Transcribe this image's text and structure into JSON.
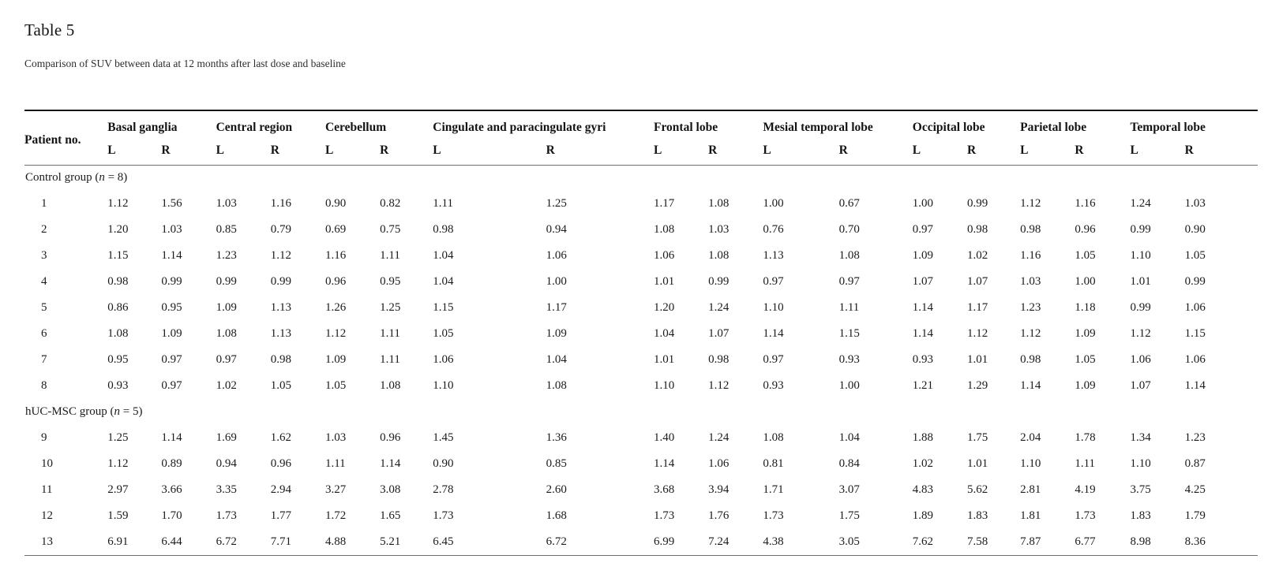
{
  "page": {
    "title": "Table 5",
    "subtitle": "Comparison of SUV between data at 12 months after last dose and baseline"
  },
  "table": {
    "patient_col_header": "Patient no.",
    "side_labels": [
      "L",
      "R"
    ],
    "regions": [
      {
        "label": "Basal ganglia"
      },
      {
        "label": "Central region"
      },
      {
        "label": "Cerebellum"
      },
      {
        "label": "Cingulate and paracingulate gyri"
      },
      {
        "label": "Frontal lobe"
      },
      {
        "label": "Mesial temporal lobe"
      },
      {
        "label": "Occipital lobe"
      },
      {
        "label": "Parietal lobe"
      },
      {
        "label": "Temporal lobe"
      }
    ],
    "groups": [
      {
        "label_pre": "Control group (",
        "label_var": "n",
        "label_post": " = 8)",
        "rows": [
          {
            "patient": "1",
            "values": [
              "1.12",
              "1.56",
              "1.03",
              "1.16",
              "0.90",
              "0.82",
              "1.11",
              "1.25",
              "1.17",
              "1.08",
              "1.00",
              "0.67",
              "1.00",
              "0.99",
              "1.12",
              "1.16",
              "1.24",
              "1.03"
            ]
          },
          {
            "patient": "2",
            "values": [
              "1.20",
              "1.03",
              "0.85",
              "0.79",
              "0.69",
              "0.75",
              "0.98",
              "0.94",
              "1.08",
              "1.03",
              "0.76",
              "0.70",
              "0.97",
              "0.98",
              "0.98",
              "0.96",
              "0.99",
              "0.90"
            ]
          },
          {
            "patient": "3",
            "values": [
              "1.15",
              "1.14",
              "1.23",
              "1.12",
              "1.16",
              "1.11",
              "1.04",
              "1.06",
              "1.06",
              "1.08",
              "1.13",
              "1.08",
              "1.09",
              "1.02",
              "1.16",
              "1.05",
              "1.10",
              "1.05"
            ]
          },
          {
            "patient": "4",
            "values": [
              "0.98",
              "0.99",
              "0.99",
              "0.99",
              "0.96",
              "0.95",
              "1.04",
              "1.00",
              "1.01",
              "0.99",
              "0.97",
              "0.97",
              "1.07",
              "1.07",
              "1.03",
              "1.00",
              "1.01",
              "0.99"
            ]
          },
          {
            "patient": "5",
            "values": [
              "0.86",
              "0.95",
              "1.09",
              "1.13",
              "1.26",
              "1.25",
              "1.15",
              "1.17",
              "1.20",
              "1.24",
              "1.10",
              "1.11",
              "1.14",
              "1.17",
              "1.23",
              "1.18",
              "0.99",
              "1.06"
            ]
          },
          {
            "patient": "6",
            "values": [
              "1.08",
              "1.09",
              "1.08",
              "1.13",
              "1.12",
              "1.11",
              "1.05",
              "1.09",
              "1.04",
              "1.07",
              "1.14",
              "1.15",
              "1.14",
              "1.12",
              "1.12",
              "1.09",
              "1.12",
              "1.15"
            ]
          },
          {
            "patient": "7",
            "values": [
              "0.95",
              "0.97",
              "0.97",
              "0.98",
              "1.09",
              "1.11",
              "1.06",
              "1.04",
              "1.01",
              "0.98",
              "0.97",
              "0.93",
              "0.93",
              "1.01",
              "0.98",
              "1.05",
              "1.06",
              "1.06"
            ]
          },
          {
            "patient": "8",
            "values": [
              "0.93",
              "0.97",
              "1.02",
              "1.05",
              "1.05",
              "1.08",
              "1.10",
              "1.08",
              "1.10",
              "1.12",
              "0.93",
              "1.00",
              "1.21",
              "1.29",
              "1.14",
              "1.09",
              "1.07",
              "1.14"
            ]
          }
        ]
      },
      {
        "label_pre": "hUC-MSC group (",
        "label_var": "n",
        "label_post": " = 5)",
        "rows": [
          {
            "patient": "9",
            "values": [
              "1.25",
              "1.14",
              "1.69",
              "1.62",
              "1.03",
              "0.96",
              "1.45",
              "1.36",
              "1.40",
              "1.24",
              "1.08",
              "1.04",
              "1.88",
              "1.75",
              "2.04",
              "1.78",
              "1.34",
              "1.23"
            ]
          },
          {
            "patient": "10",
            "values": [
              "1.12",
              "0.89",
              "0.94",
              "0.96",
              "1.11",
              "1.14",
              "0.90",
              "0.85",
              "1.14",
              "1.06",
              "0.81",
              "0.84",
              "1.02",
              "1.01",
              "1.10",
              "1.11",
              "1.10",
              "0.87"
            ]
          },
          {
            "patient": "11",
            "values": [
              "2.97",
              "3.66",
              "3.35",
              "2.94",
              "3.27",
              "3.08",
              "2.78",
              "2.60",
              "3.68",
              "3.94",
              "1.71",
              "3.07",
              "4.83",
              "5.62",
              "2.81",
              "4.19",
              "3.75",
              "4.25"
            ]
          },
          {
            "patient": "12",
            "values": [
              "1.59",
              "1.70",
              "1.73",
              "1.77",
              "1.72",
              "1.65",
              "1.73",
              "1.68",
              "1.73",
              "1.76",
              "1.73",
              "1.75",
              "1.89",
              "1.83",
              "1.81",
              "1.73",
              "1.83",
              "1.79"
            ]
          },
          {
            "patient": "13",
            "values": [
              "6.91",
              "6.44",
              "6.72",
              "7.71",
              "4.88",
              "5.21",
              "6.45",
              "6.72",
              "6.99",
              "7.24",
              "4.38",
              "3.05",
              "7.62",
              "7.58",
              "7.87",
              "6.77",
              "8.98",
              "8.36"
            ]
          }
        ]
      }
    ]
  }
}
